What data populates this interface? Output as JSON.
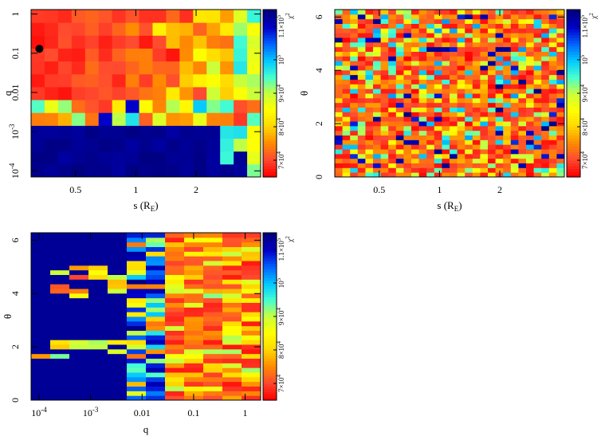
{
  "figure": {
    "background": "#ffffff",
    "grid_resolution": "map colour cells are generated procedurally to mimic the chi-squared landscape"
  },
  "chart_data": [
    {
      "type": "heatmap",
      "id": "s_vs_q",
      "xlabel": "s (R",
      "xlabel_sub": "E",
      "xlabel_close": ")",
      "ylabel": "q",
      "x_scale": "log",
      "y_scale": "log",
      "xlim": [
        0.3,
        4.2
      ],
      "ylim": [
        7e-05,
        1.3
      ],
      "xticks": [
        {
          "v": 0.5,
          "label": "0.5"
        },
        {
          "v": 1,
          "label": "1"
        },
        {
          "v": 2,
          "label": "2"
        }
      ],
      "yticks": [
        {
          "v": 1,
          "label": "1"
        },
        {
          "v": 0.1,
          "label": "0.1"
        },
        {
          "v": 0.01,
          "label": "0.01"
        },
        {
          "v": 0.001,
          "label": "10",
          "sup": "-3"
        },
        {
          "v": 0.0001,
          "label": "10",
          "sup": "-4"
        }
      ],
      "marker": {
        "s": 0.33,
        "q": 0.13,
        "color": "#000000"
      },
      "cols": 17,
      "rows": 13,
      "pattern": "q-threshold"
    },
    {
      "type": "heatmap",
      "id": "s_vs_theta",
      "xlabel": "s (R",
      "xlabel_sub": "E",
      "xlabel_close": ")",
      "ylabel": "θ",
      "x_scale": "log",
      "y_scale": "linear",
      "xlim": [
        0.3,
        4.2
      ],
      "ylim": [
        0,
        6.28
      ],
      "xticks": [
        {
          "v": 0.5,
          "label": "0.5"
        },
        {
          "v": 1,
          "label": "1"
        },
        {
          "v": 2,
          "label": "2"
        }
      ],
      "yticks": [
        {
          "v": 0,
          "label": "0"
        },
        {
          "v": 2,
          "label": "2"
        },
        {
          "v": 4,
          "label": "4"
        },
        {
          "v": 6,
          "label": "6"
        }
      ],
      "cols": 30,
      "rows": 36,
      "pattern": "noisy"
    },
    {
      "type": "heatmap",
      "id": "q_vs_theta",
      "xlabel": "q",
      "xlabel_sub": "",
      "xlabel_close": "",
      "ylabel": "θ",
      "x_scale": "log",
      "y_scale": "linear",
      "xlim": [
        7e-05,
        2.0
      ],
      "ylim": [
        0,
        6.28
      ],
      "xticks": [
        {
          "v": 0.0001,
          "label": "10",
          "sup": "-4"
        },
        {
          "v": 0.001,
          "label": "10",
          "sup": "-3"
        },
        {
          "v": 0.01,
          "label": "0.01"
        },
        {
          "v": 0.1,
          "label": "0.1"
        },
        {
          "v": 1,
          "label": "1"
        }
      ],
      "yticks": [
        {
          "v": 0,
          "label": "0"
        },
        {
          "v": 2,
          "label": "2"
        },
        {
          "v": 4,
          "label": "4"
        },
        {
          "v": 6,
          "label": "6"
        }
      ],
      "cols": 12,
      "rows": 36,
      "pattern": "q-gradient"
    }
  ],
  "colorbar": {
    "label": "χ",
    "label_sup": "2",
    "range": [
      65000,
      115000
    ],
    "ticks": [
      {
        "v": 70000,
        "label": "7×10",
        "sup": "4"
      },
      {
        "v": 80000,
        "label": "8×10",
        "sup": "4"
      },
      {
        "v": 90000,
        "label": "9×10",
        "sup": "4"
      },
      {
        "v": 100000,
        "label": "10",
        "sup": "5"
      },
      {
        "v": 110000,
        "label": "1.1×10",
        "sup": "5"
      }
    ],
    "stops": [
      "#ff0000",
      "#ff4a30",
      "#ff8c00",
      "#ffd700",
      "#ffff00",
      "#c8ff3c",
      "#46ffd2",
      "#00c8ff",
      "#0064ff",
      "#0000c8",
      "#000080"
    ]
  }
}
